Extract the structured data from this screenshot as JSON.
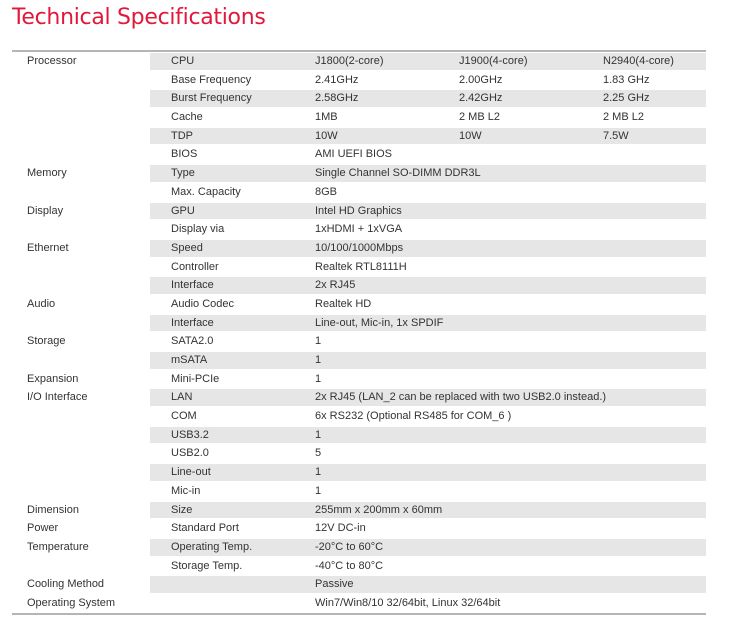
{
  "title": "Technical Specifications",
  "rows": [
    [
      "Processor",
      "CPU",
      "J1800(2-core)",
      "J1900(4-core)",
      "N2940(4-core)"
    ],
    [
      "",
      "Base Frequency",
      "2.41GHz",
      "2.00GHz",
      "1.83 GHz"
    ],
    [
      "",
      "Burst Frequency",
      "2.58GHz",
      "2.42GHz",
      "2.25 GHz"
    ],
    [
      "",
      "Cache",
      "1MB",
      "2 MB L2",
      "2 MB L2"
    ],
    [
      "",
      "TDP",
      "10W",
      "10W",
      "7.5W"
    ],
    [
      "",
      "BIOS",
      "AMI UEFI BIOS",
      "",
      ""
    ],
    [
      "Memory",
      "Type",
      "Single Channel SO-DIMM DDR3L",
      "",
      ""
    ],
    [
      "",
      "Max. Capacity",
      "8GB",
      "",
      ""
    ],
    [
      "Display",
      "GPU",
      "Intel HD Graphics",
      "",
      ""
    ],
    [
      "",
      "Display via",
      "1xHDMI + 1xVGA",
      "",
      ""
    ],
    [
      "Ethernet",
      "Speed",
      "10/100/1000Mbps",
      "",
      ""
    ],
    [
      "",
      "Controller",
      "Realtek RTL8111H",
      "",
      ""
    ],
    [
      "",
      "Interface",
      "2x RJ45",
      "",
      ""
    ],
    [
      "Audio",
      "Audio Codec",
      "Realtek HD",
      "",
      ""
    ],
    [
      "",
      "Interface",
      "Line-out, Mic-in, 1x SPDIF",
      "",
      ""
    ],
    [
      "Storage",
      "SATA2.0",
      "1",
      "",
      ""
    ],
    [
      "",
      "mSATA",
      "1",
      "",
      ""
    ],
    [
      "Expansion",
      "Mini-PCIe",
      "1",
      "",
      ""
    ],
    [
      "I/O Interface",
      "LAN",
      "2x RJ45 (LAN_2 can be replaced with two USB2.0 instead.)",
      "",
      ""
    ],
    [
      "",
      "COM",
      "6x RS232 (Optional RS485 for COM_6 )",
      "",
      ""
    ],
    [
      "",
      "USB3.2",
      "1",
      "",
      ""
    ],
    [
      "",
      "USB2.0",
      "5",
      "",
      ""
    ],
    [
      "",
      "Line-out",
      "1",
      "",
      ""
    ],
    [
      "",
      "Mic-in",
      "1",
      "",
      ""
    ],
    [
      "Dimension",
      "Size",
      "255mm x 200mm x 60mm",
      "",
      ""
    ],
    [
      "Power",
      "Standard Port",
      "12V DC-in",
      "",
      ""
    ],
    [
      "Temperature",
      "Operating Temp.",
      "-20°C to 60°C",
      "",
      ""
    ],
    [
      "",
      "Storage Temp.",
      "-40°C to 80°C",
      "",
      ""
    ],
    [
      "Cooling Method",
      "",
      "Passive",
      "",
      ""
    ],
    [
      "Operating System",
      "",
      "Win7/Win8/10 32/64bit, Linux 32/64bit",
      "",
      ""
    ]
  ]
}
